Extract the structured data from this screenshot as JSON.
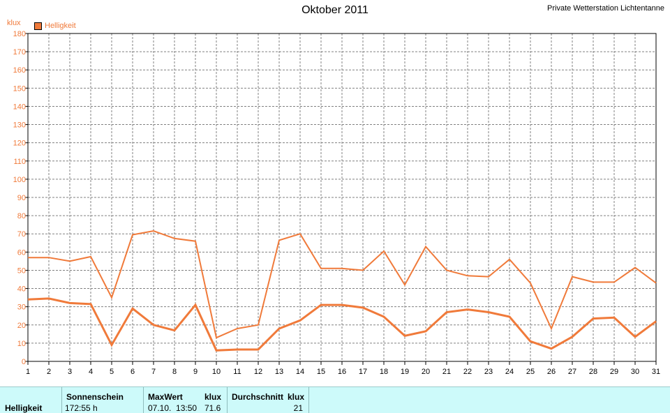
{
  "header": {
    "title": "Oktober 2011",
    "station": "Private Wetterstation Lichtentanne",
    "unit": "klux",
    "legend_label": "Helligkeit"
  },
  "colors": {
    "series": "#f07a3a",
    "grid": "#808080",
    "footer_bg": "#cdfafa"
  },
  "chart_data": {
    "type": "line",
    "title": "Oktober 2011",
    "ylabel": "klux",
    "ylim": [
      0,
      180
    ],
    "yticks": [
      0,
      10,
      20,
      30,
      40,
      50,
      60,
      70,
      80,
      90,
      100,
      110,
      120,
      130,
      140,
      150,
      160,
      170,
      180
    ],
    "x": [
      1,
      2,
      3,
      4,
      5,
      6,
      7,
      8,
      9,
      10,
      11,
      12,
      13,
      14,
      15,
      16,
      17,
      18,
      19,
      20,
      21,
      22,
      23,
      24,
      25,
      26,
      27,
      28,
      29,
      30,
      31
    ],
    "grid": true,
    "legend_position": "top-left",
    "series": [
      {
        "name": "Helligkeit",
        "style": "max",
        "values": [
          57,
          57,
          55,
          57.5,
          35,
          69.5,
          71.6,
          67.5,
          66,
          13,
          18,
          20,
          66.5,
          70,
          51,
          51,
          50,
          60.5,
          42,
          63,
          50,
          47,
          46.5,
          56,
          43,
          18,
          46.5,
          43.5,
          43.5,
          51.5,
          43
        ]
      },
      {
        "style": "mean",
        "values": [
          34,
          34.5,
          32,
          31.5,
          9,
          29,
          20,
          17,
          31,
          6,
          6.5,
          6.5,
          18,
          22.5,
          31,
          31,
          29.5,
          24.5,
          14,
          16.5,
          27,
          28.5,
          27,
          24.5,
          11,
          7,
          13.5,
          23.5,
          24,
          13.5,
          22
        ]
      }
    ]
  },
  "footer": {
    "row_label": "Helligkeit",
    "sunshine": {
      "header": "Sonnenschein",
      "value": "172:55 h"
    },
    "max": {
      "header": "MaxWert",
      "unit": "klux",
      "datetime": "07.10.  13:50",
      "value": "71.6"
    },
    "avg": {
      "header": "Durchschnitt",
      "unit": "klux",
      "value": "21"
    }
  }
}
